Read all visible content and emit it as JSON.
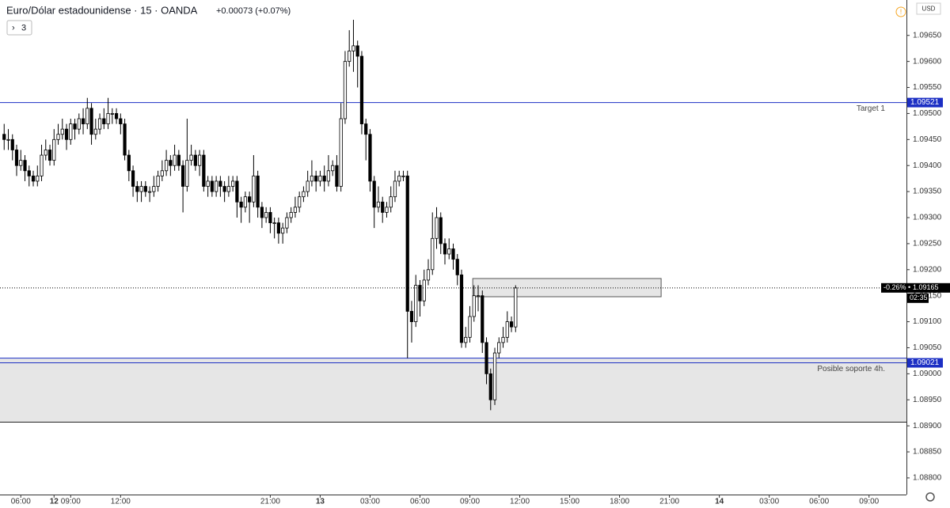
{
  "header": {
    "symbol": "Euro/Dólar estadounidense · 15 · OANDA",
    "change": "+0.00073 (+0.07%)",
    "indicators_toggle": "3",
    "currency": "USD"
  },
  "chart_data": {
    "type": "candlestick",
    "open": [
      1.0946,
      1.0945,
      1.0945,
      1.0943,
      1.094,
      1.0941,
      1.0939,
      1.0938,
      1.0937,
      1.0938,
      1.0942,
      1.0943,
      1.0941,
      1.0945,
      1.0946,
      1.0947,
      1.0945,
      1.0948,
      1.0947,
      1.0949,
      1.0948,
      1.0951,
      1.0946,
      1.0947,
      1.0949,
      1.0948,
      1.095,
      1.095,
      1.0949,
      1.0948,
      1.0942,
      1.0939,
      1.0936,
      1.0935,
      1.0936,
      1.0935,
      1.0935,
      1.0936,
      1.0938,
      1.0939,
      1.0941,
      1.094,
      1.0942,
      1.094,
      1.0936,
      1.0941,
      1.0942,
      1.094,
      1.0942,
      1.0936,
      1.0937,
      1.0935,
      1.0937,
      1.0936,
      1.0935,
      1.0936,
      1.0937,
      1.0933,
      1.0932,
      1.0934,
      1.0933,
      1.0938,
      1.0932,
      1.093,
      1.0931,
      1.0929,
      1.0929,
      1.0927,
      1.0928,
      1.093,
      1.0931,
      1.0932,
      1.0934,
      1.0935,
      1.0937,
      1.0938,
      1.0937,
      1.0938,
      1.0937,
      1.0939,
      1.094,
      1.0936,
      1.0949,
      1.096,
      1.0962,
      1.0963,
      1.0961,
      1.0948,
      1.0946,
      1.0937,
      1.0932,
      1.0933,
      1.0931,
      1.0932,
      1.0934,
      1.0937,
      1.0938,
      1.0938,
      1.0912,
      1.091,
      1.0917,
      1.0914,
      1.0918,
      1.092,
      1.0926,
      1.093,
      1.0925,
      1.0923,
      1.0924,
      1.0922,
      1.0919,
      1.0906,
      1.0907,
      1.0911,
      1.0915,
      1.0915,
      1.0906,
      1.09,
      1.0895,
      1.0904,
      1.0906,
      1.0907,
      1.091,
      1.0909
    ],
    "high": [
      1.0948,
      1.0947,
      1.0946,
      1.0944,
      1.0943,
      1.0942,
      1.094,
      1.0939,
      1.094,
      1.0944,
      1.0945,
      1.0944,
      1.0947,
      1.0948,
      1.0949,
      1.0948,
      1.0949,
      1.0949,
      1.095,
      1.0951,
      1.0953,
      1.0952,
      1.0949,
      1.095,
      1.0951,
      1.0953,
      1.0951,
      1.0951,
      1.095,
      1.0949,
      1.0943,
      1.094,
      1.0937,
      1.0937,
      1.0937,
      1.0936,
      1.0938,
      1.0939,
      1.0941,
      1.0943,
      1.0942,
      1.0944,
      1.0943,
      1.0941,
      1.0949,
      1.0944,
      1.0943,
      1.0943,
      1.0943,
      1.0938,
      1.0938,
      1.0938,
      1.0938,
      1.0937,
      1.0938,
      1.0938,
      1.0938,
      1.0934,
      1.0935,
      1.0935,
      1.0942,
      1.0939,
      1.0933,
      1.0932,
      1.0932,
      1.093,
      1.093,
      1.0929,
      1.0931,
      1.0932,
      1.0934,
      1.0935,
      1.0936,
      1.0939,
      1.0941,
      1.0939,
      1.0939,
      1.094,
      1.0942,
      1.0941,
      1.0942,
      1.0952,
      1.0962,
      1.0966,
      1.0968,
      1.0964,
      1.0962,
      1.0949,
      1.0947,
      1.0938,
      1.0936,
      1.0934,
      1.0933,
      1.0936,
      1.0939,
      1.0939,
      1.0939,
      1.0939,
      1.0914,
      1.0919,
      1.0918,
      1.092,
      1.0922,
      1.0931,
      1.0932,
      1.0931,
      1.0926,
      1.0926,
      1.0925,
      1.0923,
      1.092,
      1.0909,
      1.0913,
      1.0917,
      1.0917,
      1.0916,
      1.0907,
      1.0901,
      1.0905,
      1.0907,
      1.0909,
      1.0912,
      1.0911,
      1.0917
    ],
    "low": [
      1.0943,
      1.0943,
      1.0941,
      1.0938,
      1.0939,
      1.0937,
      1.0936,
      1.0936,
      1.0936,
      1.0937,
      1.0941,
      1.094,
      1.094,
      1.0944,
      1.0945,
      1.0943,
      1.0944,
      1.0945,
      1.0946,
      1.0946,
      1.0947,
      1.0944,
      1.0945,
      1.0946,
      1.0947,
      1.0947,
      1.0948,
      1.0948,
      1.0946,
      1.0941,
      1.0937,
      1.0934,
      1.0933,
      1.0933,
      1.0934,
      1.0933,
      1.0934,
      1.0935,
      1.0937,
      1.0938,
      1.0938,
      1.0939,
      1.0939,
      1.0931,
      1.0935,
      1.094,
      1.0939,
      1.0938,
      1.0935,
      1.0934,
      1.0934,
      1.0934,
      1.0934,
      1.0933,
      1.0934,
      1.0935,
      1.093,
      1.0929,
      1.0931,
      1.0929,
      1.0932,
      1.093,
      1.0928,
      1.0929,
      1.0927,
      1.0926,
      1.0925,
      1.0925,
      1.0927,
      1.0929,
      1.093,
      1.0931,
      1.0933,
      1.0934,
      1.0936,
      1.0935,
      1.0936,
      1.0935,
      1.0936,
      1.0938,
      1.0935,
      1.0935,
      1.0948,
      1.0959,
      1.0958,
      1.0955,
      1.0946,
      1.0941,
      1.0935,
      1.0928,
      1.0931,
      1.0929,
      1.093,
      1.0931,
      1.0933,
      1.0936,
      1.0937,
      1.0903,
      1.0906,
      1.0909,
      1.0911,
      1.0913,
      1.0917,
      1.0919,
      1.0924,
      1.0923,
      1.0921,
      1.0922,
      1.092,
      1.0917,
      1.0905,
      1.0905,
      1.0906,
      1.091,
      1.0912,
      1.0904,
      1.0898,
      1.0893,
      1.0894,
      1.0903,
      1.0905,
      1.0906,
      1.0908,
      1.0908
    ],
    "close": [
      1.0945,
      1.0945,
      1.0943,
      1.094,
      1.0941,
      1.0939,
      1.0938,
      1.0937,
      1.0938,
      1.0942,
      1.0943,
      1.0941,
      1.0945,
      1.0946,
      1.0947,
      1.0945,
      1.0948,
      1.0947,
      1.0949,
      1.0948,
      1.0951,
      1.0946,
      1.0947,
      1.0949,
      1.0948,
      1.095,
      1.095,
      1.0949,
      1.0948,
      1.0942,
      1.0939,
      1.0936,
      1.0935,
      1.0936,
      1.0935,
      1.0935,
      1.0936,
      1.0938,
      1.0939,
      1.0941,
      1.094,
      1.0942,
      1.094,
      1.0936,
      1.0941,
      1.0942,
      1.094,
      1.0942,
      1.0936,
      1.0937,
      1.0935,
      1.0937,
      1.0936,
      1.0935,
      1.0936,
      1.0937,
      1.0933,
      1.0932,
      1.0934,
      1.0933,
      1.0938,
      1.0932,
      1.093,
      1.0931,
      1.0929,
      1.0929,
      1.0927,
      1.0928,
      1.093,
      1.0931,
      1.0932,
      1.0934,
      1.0935,
      1.0937,
      1.0938,
      1.0937,
      1.0938,
      1.0937,
      1.0939,
      1.094,
      1.0936,
      1.0949,
      1.096,
      1.0962,
      1.0963,
      1.0961,
      1.0948,
      1.0946,
      1.0937,
      1.0932,
      1.0933,
      1.0931,
      1.0932,
      1.0934,
      1.0937,
      1.0938,
      1.0938,
      1.0912,
      1.091,
      1.0917,
      1.0914,
      1.0918,
      1.092,
      1.0926,
      1.093,
      1.0925,
      1.0923,
      1.0924,
      1.0922,
      1.0919,
      1.0906,
      1.0907,
      1.0911,
      1.0915,
      1.0915,
      1.0906,
      1.09,
      1.0895,
      1.0904,
      1.0906,
      1.0907,
      1.091,
      1.0909,
      1.09165
    ],
    "up_color": "#ffffff",
    "down_color": "#000000",
    "xlim": [
      -1,
      217
    ],
    "xticks": [
      {
        "value": 4,
        "label": "06:00"
      },
      {
        "value": 16,
        "label": "09:00"
      },
      {
        "value": 28,
        "label": "12:00"
      },
      12,
      {
        "value": 64,
        "label": "21:00"
      },
      {
        "value": 76,
        "label": "13"
      },
      {
        "value": 88,
        "label": "03:00"
      },
      {
        "value": 100,
        "label": "06:00"
      },
      {
        "value": 112,
        "label": "09:00"
      },
      {
        "value": 124,
        "label": "12:00"
      },
      {
        "value": 136,
        "label": "15:00"
      },
      {
        "value": 148,
        "label": "18:00"
      },
      {
        "value": 160,
        "label": "21:00"
      },
      {
        "value": 172,
        "label": "14"
      },
      {
        "value": 184,
        "label": "03:00"
      },
      {
        "value": 196,
        "label": "06:00"
      },
      {
        "value": 208,
        "label": "09:00"
      }
    ],
    "ylim": [
      1.08768,
      1.09718
    ],
    "yticks": [
      {
        "value": 1.088,
        "label": "1.08800"
      },
      {
        "value": 1.0885,
        "label": "1.08850"
      },
      {
        "value": 1.089,
        "label": "1.08900"
      },
      {
        "value": 1.0895,
        "label": "1.08950"
      },
      {
        "value": 1.09,
        "label": "1.09000"
      },
      {
        "value": 1.0905,
        "label": "1.09050"
      },
      {
        "value": 1.091,
        "label": "1.09100"
      },
      {
        "value": 1.0915,
        "label": "1.09150"
      },
      {
        "value": 1.092,
        "label": "1.09200"
      },
      {
        "value": 1.0925,
        "label": "1.09250"
      },
      {
        "value": 1.093,
        "label": "1.09300"
      },
      {
        "value": 1.0935,
        "label": "1.09350"
      },
      {
        "value": 1.094,
        "label": "1.09400"
      },
      {
        "value": 1.0945,
        "label": "1.09450"
      },
      {
        "value": 1.095,
        "label": "1.09500"
      },
      {
        "value": 1.0955,
        "label": "1.09550"
      },
      {
        "value": 1.096,
        "label": "1.09600"
      },
      {
        "value": 1.0965,
        "label": "1.09650"
      }
    ],
    "lines": [
      {
        "label": "Target 1",
        "value": 1.09521,
        "color": "#1c2fc4"
      },
      {
        "label": "Posible soporte 4h.",
        "value": 1.09021,
        "color": "#1c2fc4"
      }
    ],
    "zones": [
      {
        "x": [
          112.7,
          158
        ],
        "y": [
          1.09148,
          1.09183
        ]
      },
      {
        "x": [
          -1,
          217
        ],
        "y": [
          1.08907,
          1.0903
        ]
      }
    ],
    "last_price": {
      "change_pct": "-0.26%",
      "value": 1.09165,
      "countdown": "02:35"
    }
  }
}
